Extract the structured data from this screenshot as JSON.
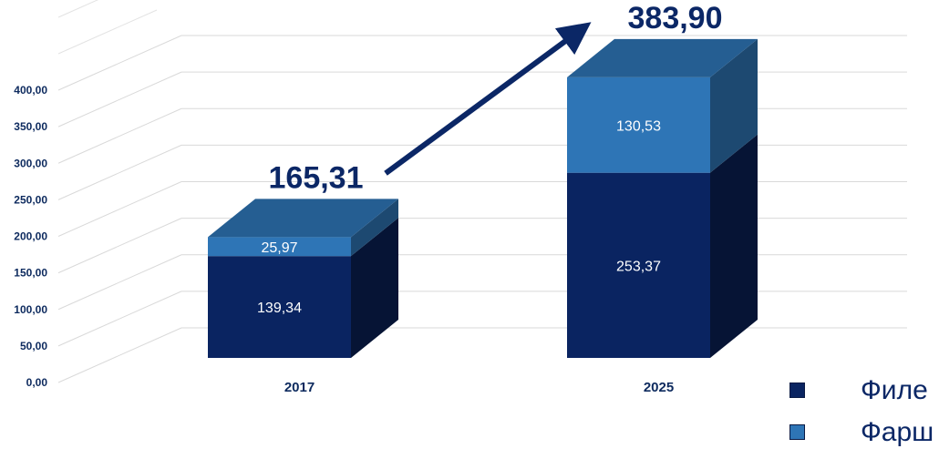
{
  "chart_data": {
    "type": "bar",
    "stacked": true,
    "three_d": true,
    "categories": [
      "2017",
      "2025"
    ],
    "series": [
      {
        "name": "Филе",
        "values": [
          139.34,
          253.37
        ],
        "color": "#0a2461",
        "value_labels": [
          "139,34",
          "253,37"
        ]
      },
      {
        "name": "Фарш",
        "values": [
          25.97,
          130.53
        ],
        "color": "#2e75b6",
        "value_labels": [
          "25,97",
          "130,53"
        ]
      }
    ],
    "totals": [
      165.31,
      383.9
    ],
    "total_labels": [
      "165,31",
      "383,90"
    ],
    "ylim": [
      0,
      400
    ],
    "yticks": [
      0,
      50,
      100,
      150,
      200,
      250,
      300,
      350,
      400
    ],
    "ytick_labels": [
      "0,00",
      "50,00",
      "100,00",
      "150,00",
      "200,00",
      "250,00",
      "300,00",
      "350,00",
      "400,00"
    ],
    "grid": true,
    "legend": "bottom-right",
    "arrow": {
      "from": "2017",
      "to": "2025",
      "color": "#0b2766"
    },
    "title": "",
    "xlabel": "",
    "ylabel": ""
  }
}
